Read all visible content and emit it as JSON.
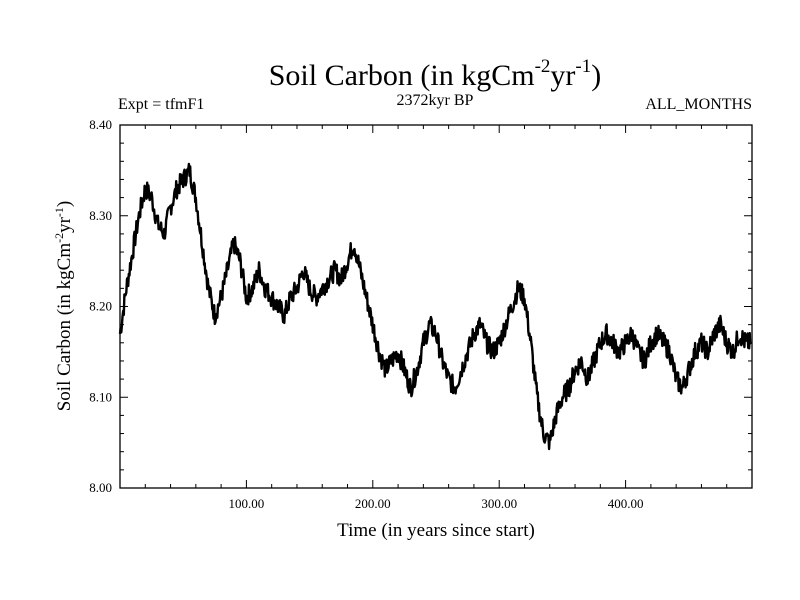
{
  "chart_data": {
    "type": "line",
    "title": {
      "main": "Soil Carbon (in kgCm",
      "sup1": "-2",
      "mid": "yr",
      "sup2": "-1",
      "end": ")"
    },
    "subtitle": "2372kyr BP",
    "left_note": "Expt = tfmF1",
    "right_note": "ALL_MONTHS",
    "xlabel": "Time (in years since start)",
    "ylabel": {
      "main": "Soil Carbon (in kgCm",
      "sup1": "-2",
      "mid": "yr",
      "sup2": "-1",
      "end": ")"
    },
    "xlim": [
      0,
      500
    ],
    "ylim": [
      8.0,
      8.4
    ],
    "xticks": [
      100,
      200,
      300,
      400
    ],
    "xtick_labels": [
      "100.00",
      "200.00",
      "300.00",
      "400.00"
    ],
    "yticks": [
      8.0,
      8.1,
      8.2,
      8.3,
      8.4
    ],
    "ytick_labels": [
      "8.00",
      "8.10",
      "8.20",
      "8.30",
      "8.40"
    ],
    "series": [
      {
        "name": "Soil Carbon",
        "color": "#000000",
        "x": [
          0,
          5,
          10,
          15,
          20,
          25,
          30,
          35,
          40,
          45,
          50,
          55,
          60,
          65,
          70,
          75,
          80,
          85,
          90,
          95,
          100,
          105,
          110,
          115,
          120,
          125,
          130,
          135,
          140,
          145,
          150,
          155,
          160,
          165,
          170,
          175,
          180,
          185,
          190,
          195,
          200,
          205,
          210,
          215,
          220,
          225,
          230,
          235,
          240,
          245,
          250,
          255,
          260,
          265,
          270,
          275,
          280,
          285,
          290,
          295,
          300,
          305,
          310,
          315,
          320,
          325,
          330,
          335,
          340,
          345,
          350,
          355,
          360,
          365,
          370,
          375,
          380,
          385,
          390,
          395,
          400,
          405,
          410,
          415,
          420,
          425,
          430,
          435,
          440,
          445,
          450,
          455,
          460,
          465,
          470,
          475,
          480,
          485,
          490,
          495,
          499
        ],
        "values": [
          8.17,
          8.22,
          8.26,
          8.3,
          8.33,
          8.32,
          8.29,
          8.28,
          8.31,
          8.33,
          8.34,
          8.35,
          8.32,
          8.27,
          8.22,
          8.19,
          8.21,
          8.24,
          8.27,
          8.25,
          8.21,
          8.22,
          8.24,
          8.22,
          8.21,
          8.2,
          8.19,
          8.21,
          8.22,
          8.24,
          8.22,
          8.21,
          8.22,
          8.23,
          8.24,
          8.23,
          8.25,
          8.27,
          8.24,
          8.21,
          8.18,
          8.15,
          8.13,
          8.14,
          8.15,
          8.13,
          8.11,
          8.13,
          8.16,
          8.18,
          8.17,
          8.14,
          8.12,
          8.11,
          8.13,
          8.15,
          8.17,
          8.18,
          8.16,
          8.15,
          8.16,
          8.18,
          8.2,
          8.22,
          8.21,
          8.16,
          8.1,
          8.06,
          8.05,
          8.08,
          8.1,
          8.11,
          8.13,
          8.14,
          8.12,
          8.14,
          8.16,
          8.17,
          8.16,
          8.15,
          8.16,
          8.17,
          8.15,
          8.14,
          8.16,
          8.17,
          8.16,
          8.15,
          8.12,
          8.11,
          8.13,
          8.15,
          8.16,
          8.15,
          8.17,
          8.18,
          8.16,
          8.15,
          8.17,
          8.16,
          8.16
        ]
      }
    ]
  }
}
